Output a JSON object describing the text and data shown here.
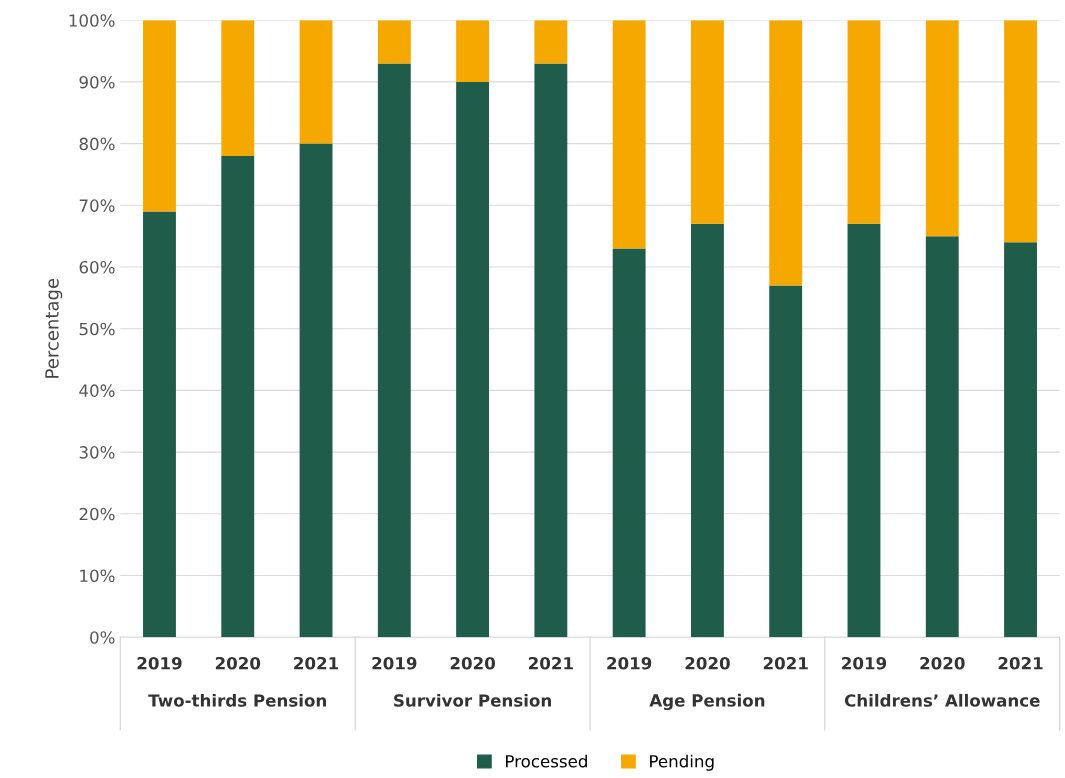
{
  "chart_data": {
    "type": "bar",
    "stacked": true,
    "ylabel": "Percentage",
    "categories": [
      "2019",
      "2020",
      "2021",
      "2019",
      "2020",
      "2021",
      "2019",
      "2020",
      "2021",
      "2019",
      "2020",
      "2021"
    ],
    "series": [
      {
        "name": "Processed",
        "color": "#1f5c4a",
        "values": [
          69,
          78,
          80,
          93,
          90,
          93,
          63,
          67,
          57,
          67,
          65,
          64
        ]
      },
      {
        "name": "Pending",
        "color": "#f5a800",
        "values": [
          31,
          22,
          20,
          7,
          10,
          7,
          37,
          33,
          43,
          33,
          35,
          36
        ]
      }
    ],
    "annotations": [
      "Two-thirds Pension",
      "Survivor Pension",
      "Age Pension",
      "Childrens’ Allowance"
    ],
    "ylim": [
      0,
      100
    ],
    "yticks": [
      {
        "value": 0,
        "label": "0%"
      },
      {
        "value": 10,
        "label": "10%"
      },
      {
        "value": 20,
        "label": "20%"
      },
      {
        "value": 30,
        "label": "30%"
      },
      {
        "value": 40,
        "label": "40%"
      },
      {
        "value": 50,
        "label": "50%"
      },
      {
        "value": 60,
        "label": "60%"
      },
      {
        "value": 70,
        "label": "70%"
      },
      {
        "value": 80,
        "label": "80%"
      },
      {
        "value": 90,
        "label": "90%"
      },
      {
        "value": 100,
        "label": "100%"
      }
    ],
    "grid": "y",
    "legend": "bottom"
  }
}
